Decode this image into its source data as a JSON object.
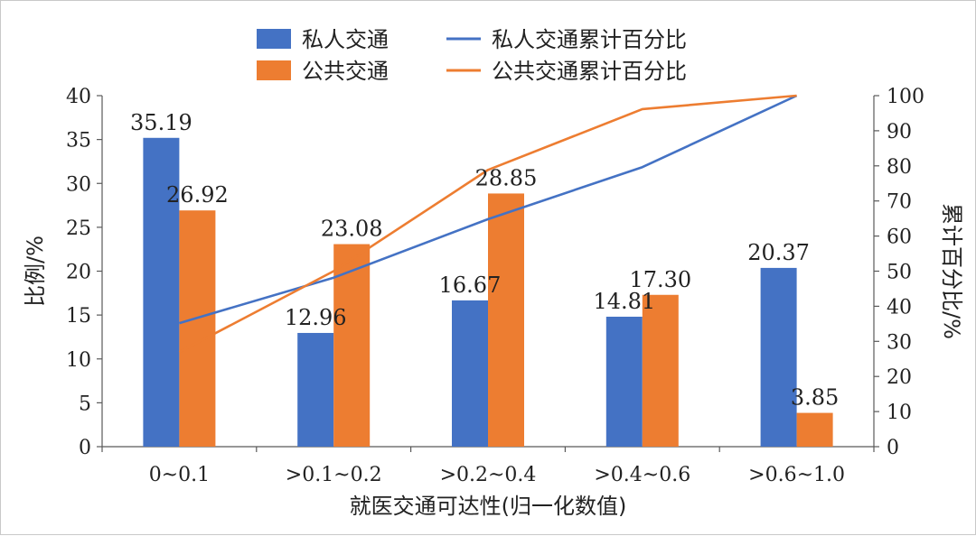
{
  "chart_data": {
    "type": "bar",
    "x_axis_label": "就医交通可达性(归一化数值)",
    "y_axis_left_label": "比例/%",
    "y_axis_right_label": "累计百分比/%",
    "categories": [
      "0~0.1",
      ">0.1~0.2",
      ">0.2~0.4",
      ">0.4~0.6",
      ">0.6~1.0"
    ],
    "y_left_range": [
      0,
      40
    ],
    "y_left_ticks": [
      "0",
      "5",
      "10",
      "15",
      "20",
      "25",
      "30",
      "35",
      "40"
    ],
    "y_right_range": [
      0,
      100
    ],
    "y_right_ticks": [
      "0",
      "10",
      "20",
      "30",
      "40",
      "50",
      "60",
      "70",
      "80",
      "90",
      "100"
    ],
    "grid": false,
    "legend_position": "top-center",
    "bar_series": [
      {
        "name": "私人交通",
        "color": "#4472c4",
        "values": [
          35.19,
          12.96,
          16.67,
          14.81,
          20.37
        ],
        "labels": [
          "35.19",
          "12.96",
          "16.67",
          "14.81",
          "20.37"
        ]
      },
      {
        "name": "公共交通",
        "color": "#ed7d31",
        "values": [
          26.92,
          23.08,
          28.85,
          17.3,
          3.85
        ],
        "labels": [
          "26.92",
          "23.08",
          "28.85",
          "17.30",
          "3.85"
        ]
      }
    ],
    "line_series": [
      {
        "name": "私人交通累计百分比",
        "color": "#4472c4",
        "axis": "right",
        "values": [
          35.19,
          48.15,
          64.82,
          79.63,
          100.0
        ]
      },
      {
        "name": "公共交通累计百分比",
        "color": "#ed7d31",
        "axis": "right",
        "values": [
          26.92,
          50.0,
          78.85,
          96.15,
          100.0
        ]
      }
    ]
  }
}
